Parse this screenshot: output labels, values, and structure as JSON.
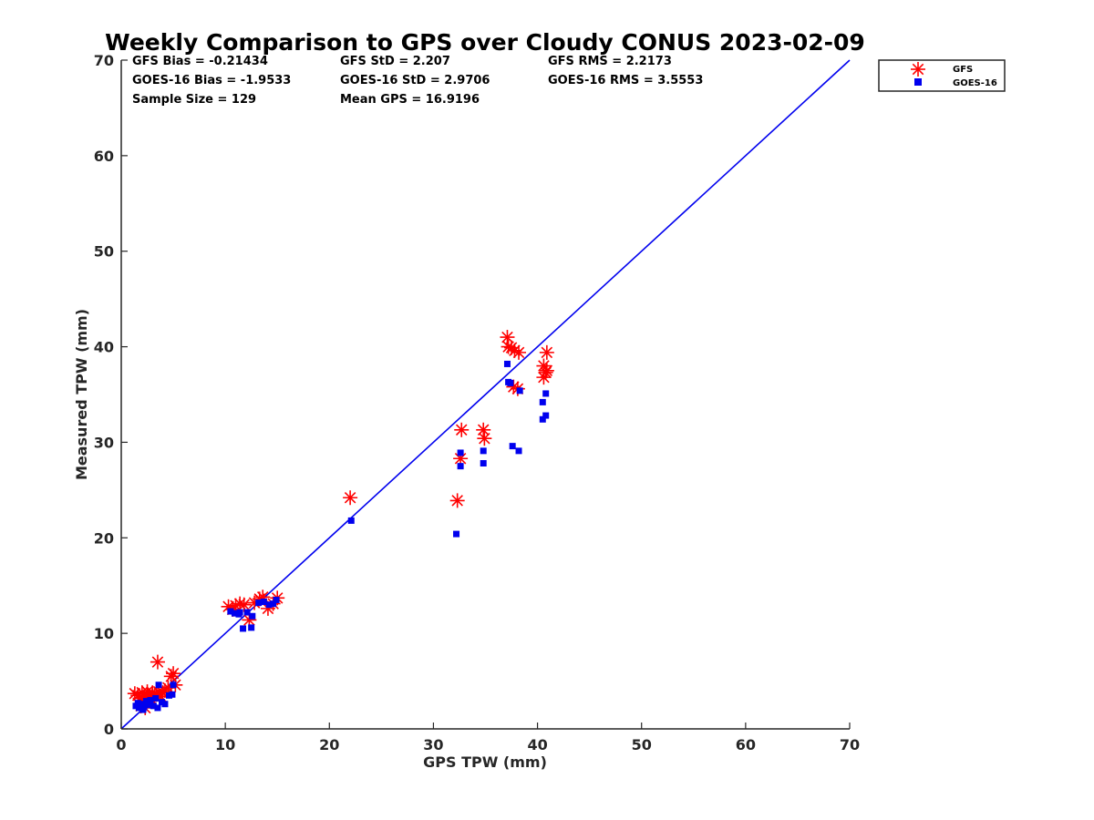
{
  "chart_data": {
    "type": "scatter",
    "title": "Weekly Comparison to GPS over Cloudy CONUS 2023-02-09",
    "xlabel": "GPS TPW (mm)",
    "ylabel": "Measured TPW (mm)",
    "xlim": [
      0,
      70
    ],
    "ylim": [
      0,
      70
    ],
    "xticks": [
      "0",
      "10",
      "20",
      "30",
      "40",
      "50",
      "60",
      "70"
    ],
    "yticks": [
      "0",
      "10",
      "20",
      "30",
      "40",
      "50",
      "60",
      "70"
    ],
    "grid": false,
    "legend_position": "outside-top-right",
    "reference_line": {
      "from": [
        0,
        0
      ],
      "to": [
        70,
        70
      ],
      "color": "#0000ee"
    },
    "stats": [
      [
        "GFS Bias = -0.21434",
        "GFS StD = 2.207",
        "GFS RMS = 2.2173"
      ],
      [
        "GOES-16 Bias = -1.9533",
        "GOES-16 StD = 2.9706",
        "GOES-16 RMS = 3.5553"
      ],
      [
        "Sample Size = 129",
        "Mean GPS = 16.9196",
        ""
      ]
    ],
    "series": [
      {
        "name": "GFS",
        "marker": "asterisk",
        "color": "#ff0000",
        "points": [
          [
            1.3,
            3.7
          ],
          [
            1.6,
            3.5
          ],
          [
            1.8,
            3.2
          ],
          [
            2.0,
            3.8
          ],
          [
            2.2,
            3.4
          ],
          [
            2.4,
            2.8
          ],
          [
            2.5,
            3.9
          ],
          [
            2.6,
            3.5
          ],
          [
            2.8,
            3.2
          ],
          [
            3.0,
            3.8
          ],
          [
            3.2,
            3.5
          ],
          [
            3.4,
            3.6
          ],
          [
            3.5,
            7.0
          ],
          [
            3.6,
            3.9
          ],
          [
            3.8,
            3.4
          ],
          [
            4.0,
            3.8
          ],
          [
            4.2,
            4.0
          ],
          [
            4.5,
            4.3
          ],
          [
            4.8,
            5.5
          ],
          [
            5.0,
            5.8
          ],
          [
            5.2,
            4.6
          ],
          [
            1.9,
            2.4
          ],
          [
            2.3,
            2.2
          ],
          [
            10.3,
            12.8
          ],
          [
            10.7,
            12.5
          ],
          [
            11.0,
            12.9
          ],
          [
            11.4,
            13.1
          ],
          [
            11.8,
            13.0
          ],
          [
            12.3,
            11.4
          ],
          [
            12.8,
            13.2
          ],
          [
            13.3,
            13.6
          ],
          [
            13.6,
            13.8
          ],
          [
            14.1,
            12.6
          ],
          [
            14.6,
            13.1
          ],
          [
            15.0,
            13.7
          ],
          [
            22.0,
            24.2
          ],
          [
            32.3,
            23.9
          ],
          [
            32.6,
            28.3
          ],
          [
            32.7,
            31.3
          ],
          [
            34.8,
            31.3
          ],
          [
            34.9,
            30.4
          ],
          [
            37.1,
            41.0
          ],
          [
            37.2,
            40.0
          ],
          [
            37.5,
            39.9
          ],
          [
            37.8,
            39.6
          ],
          [
            38.2,
            39.4
          ],
          [
            37.7,
            35.8
          ],
          [
            38.1,
            35.6
          ],
          [
            40.6,
            38.0
          ],
          [
            40.8,
            37.3
          ],
          [
            40.6,
            36.8
          ],
          [
            40.9,
            39.4
          ],
          [
            40.9,
            37.5
          ]
        ]
      },
      {
        "name": "GOES-16",
        "marker": "square",
        "color": "#0000ee",
        "points": [
          [
            1.4,
            2.4
          ],
          [
            1.7,
            2.2
          ],
          [
            2.0,
            2.6
          ],
          [
            2.2,
            2.3
          ],
          [
            2.4,
            2.9
          ],
          [
            2.6,
            2.5
          ],
          [
            2.8,
            3.0
          ],
          [
            3.1,
            2.4
          ],
          [
            3.3,
            3.2
          ],
          [
            3.5,
            2.2
          ],
          [
            3.6,
            4.6
          ],
          [
            3.9,
            2.8
          ],
          [
            4.2,
            2.6
          ],
          [
            4.6,
            3.5
          ],
          [
            4.9,
            3.6
          ],
          [
            5.0,
            4.6
          ],
          [
            2.1,
            2.0
          ],
          [
            1.6,
            2.7
          ],
          [
            10.5,
            12.3
          ],
          [
            10.9,
            12.1
          ],
          [
            11.3,
            12.0
          ],
          [
            11.7,
            10.5
          ],
          [
            12.1,
            12.2
          ],
          [
            12.5,
            10.6
          ],
          [
            12.6,
            11.8
          ],
          [
            13.2,
            13.2
          ],
          [
            13.7,
            13.3
          ],
          [
            14.2,
            13.0
          ],
          [
            14.6,
            13.1
          ],
          [
            14.9,
            13.5
          ],
          [
            11.4,
            12.2
          ],
          [
            22.1,
            21.8
          ],
          [
            32.2,
            20.4
          ],
          [
            32.6,
            27.5
          ],
          [
            32.6,
            28.9
          ],
          [
            34.8,
            27.8
          ],
          [
            34.8,
            29.1
          ],
          [
            37.1,
            38.2
          ],
          [
            37.2,
            36.3
          ],
          [
            37.4,
            36.2
          ],
          [
            37.6,
            29.6
          ],
          [
            38.2,
            29.1
          ],
          [
            38.3,
            35.4
          ],
          [
            40.5,
            34.2
          ],
          [
            40.5,
            32.4
          ],
          [
            40.8,
            35.1
          ],
          [
            40.8,
            32.8
          ]
        ]
      }
    ]
  }
}
